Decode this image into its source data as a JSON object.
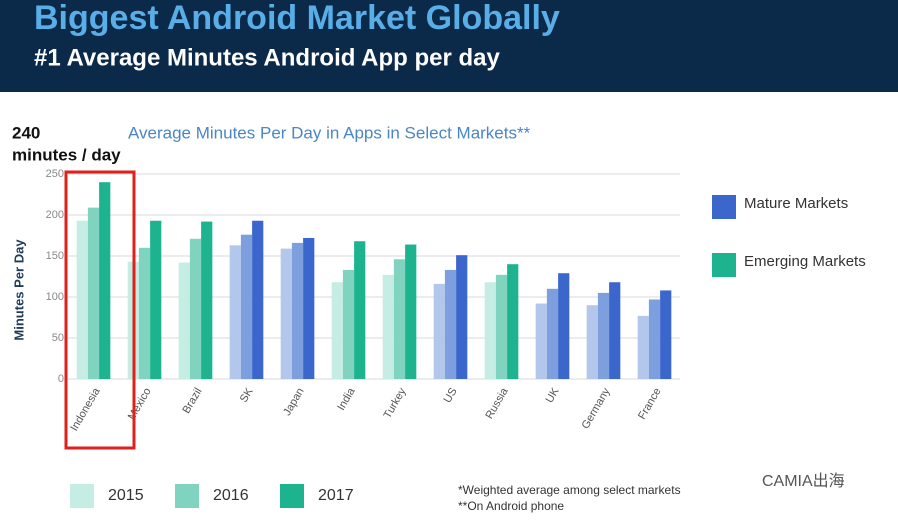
{
  "header": {
    "title": "Biggest Android Market Globally",
    "subtitle": "#1 Average Minutes Android App per day"
  },
  "chart_data": {
    "type": "bar",
    "title": "Average Minutes Per Day in Apps in Select Markets**",
    "y_label": "Minutes Per Day",
    "annotations": [
      "240",
      "minutes / day"
    ],
    "categories": [
      "Indonesia",
      "Mexico",
      "Brazil",
      "SK",
      "Japan",
      "India",
      "Turkey",
      "US",
      "Russia",
      "UK",
      "Germany",
      "France"
    ],
    "series": [
      {
        "name": "2015",
        "color": "#c5ede3",
        "values": [
          193,
          143,
          142,
          163,
          159,
          118,
          127,
          116,
          118,
          92,
          90,
          77
        ],
        "colors": [
          "#c5ede3",
          "#c5ede3",
          "#c5ede3",
          "#b3c6ec",
          "#b3c6ec",
          "#c5ede3",
          "#c5ede3",
          "#b3c6ec",
          "#c5ede3",
          "#b3c6ec",
          "#b3c6ec",
          "#b3c6ec"
        ]
      },
      {
        "name": "2016",
        "color": "#7fd3bf",
        "values": [
          209,
          160,
          171,
          176,
          166,
          133,
          146,
          133,
          127,
          110,
          105,
          97
        ],
        "colors": [
          "#7fd3bf",
          "#7fd3bf",
          "#7fd3bf",
          "#7d9fde",
          "#7d9fde",
          "#7fd3bf",
          "#7fd3bf",
          "#7d9fde",
          "#7fd3bf",
          "#7d9fde",
          "#7d9fde",
          "#7d9fde"
        ]
      },
      {
        "name": "2017",
        "color": "#1db38f",
        "values": [
          240,
          193,
          192,
          193,
          172,
          168,
          164,
          151,
          140,
          129,
          118,
          108
        ],
        "colors": [
          "#1db38f",
          "#1db38f",
          "#1db38f",
          "#3b66cc",
          "#3b66cc",
          "#1db38f",
          "#1db38f",
          "#3b66cc",
          "#1db38f",
          "#3b66cc",
          "#3b66cc",
          "#3b66cc"
        ]
      }
    ],
    "market_legend": [
      {
        "name": "Mature Markets",
        "color": "#3b66cc"
      },
      {
        "name": "Emerging Markets",
        "color": "#1db38f"
      }
    ],
    "ylim": [
      0,
      250
    ],
    "yticks": [
      0,
      50,
      100,
      150,
      200,
      250
    ],
    "grid": true,
    "footnotes": [
      "*Weighted average among select markets",
      "**On Android phone"
    ],
    "watermark": "CAMIA出海"
  }
}
